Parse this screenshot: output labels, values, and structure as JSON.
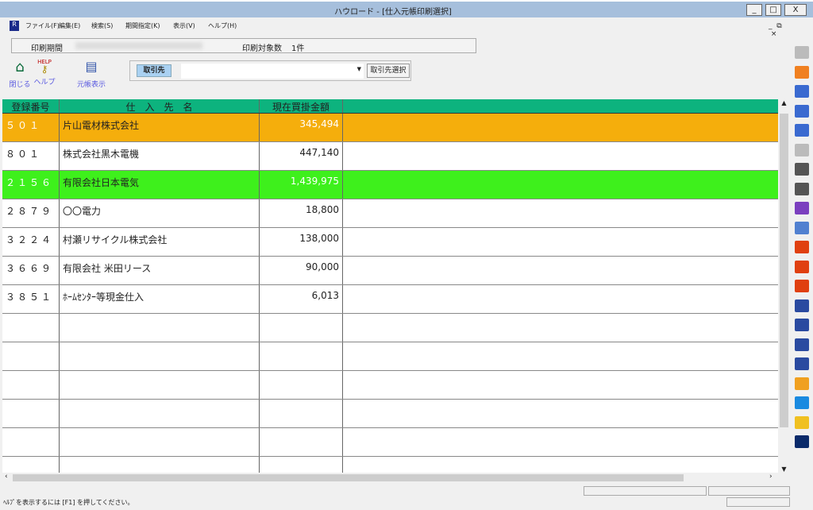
{
  "window": {
    "title": "ハウロード - [仕入元帳印刷選択]",
    "minimize": "_",
    "maximize": "□",
    "close": "X"
  },
  "menu": [
    "ファイル(F)",
    "編集(E)",
    "検索(S)",
    "期間指定(K)",
    "表示(V)",
    "ヘルプ(H)"
  ],
  "info": {
    "period_label": "印刷期間",
    "count_label": "印刷対象数",
    "count_value": "1件"
  },
  "toolbar": {
    "close": "閉じる",
    "help": "ヘルプ",
    "help_icon_text": "HELP",
    "ledger": "元帳表示"
  },
  "search": {
    "label": "取引先",
    "value": "",
    "select_button": "取引先選択"
  },
  "table": {
    "headers": [
      "登録番号",
      "仕　入　先　名",
      "現在買掛金額",
      ""
    ],
    "rows": [
      {
        "code": "５０１",
        "name": "片山電材株式会社",
        "amount": "345,494",
        "highlight": "#f5ae0c"
      },
      {
        "code": "８０１",
        "name": "株式会社黒木電機",
        "amount": "447,140",
        "highlight": ""
      },
      {
        "code": "２１５６",
        "name": "有限会社日本電気",
        "amount": "1,439,975",
        "highlight": "#3ef01c"
      },
      {
        "code": "２８７９",
        "name": "〇〇電力",
        "amount": "18,800",
        "highlight": ""
      },
      {
        "code": "３２２４",
        "name": "村瀬リサイクル株式会社",
        "amount": "138,000",
        "highlight": ""
      },
      {
        "code": "３６６９",
        "name": "有限会社 米田リース",
        "amount": "90,000",
        "highlight": ""
      },
      {
        "code": "３８５１",
        "name": "ﾎｰﾑｾﾝﾀｰ等現金仕入",
        "amount": "6,013",
        "highlight": ""
      }
    ],
    "empty_rows": 6
  },
  "status": {
    "text": "ﾍﾙﾌﾟを表示するには [F1] を押してください。"
  },
  "colors": {
    "header": "#0db37e",
    "titlebar": "#a6bfdc"
  }
}
